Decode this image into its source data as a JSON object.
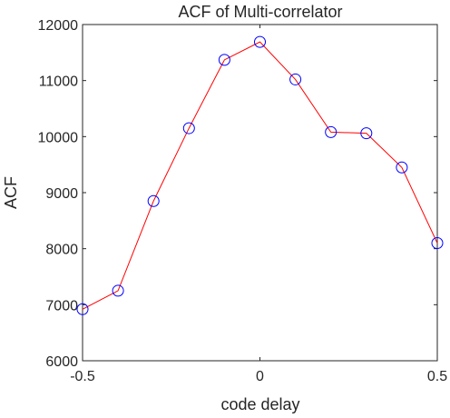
{
  "chart_data": {
    "type": "line",
    "title": "ACF of Multi-correlator",
    "xlabel": "code delay",
    "ylabel": "ACF",
    "xlim": [
      -0.5,
      0.5
    ],
    "ylim": [
      6000,
      12000
    ],
    "xticks": [
      -0.5,
      0,
      0.5
    ],
    "xtick_labels": [
      "-0.5",
      "0",
      "0.5"
    ],
    "yticks": [
      6000,
      7000,
      8000,
      9000,
      10000,
      11000,
      12000
    ],
    "ytick_labels": [
      "6000",
      "7000",
      "8000",
      "9000",
      "10000",
      "11000",
      "12000"
    ],
    "grid": false,
    "series": [
      {
        "x": [
          -0.5,
          -0.4,
          -0.3,
          -0.2,
          -0.1,
          0,
          0.1,
          0.2,
          0.3,
          0.4,
          0.5
        ],
        "y": [
          6920,
          7250,
          8850,
          10150,
          11370,
          11690,
          11020,
          10080,
          10060,
          9450,
          8100
        ],
        "line_color": "#ff0000",
        "marker": "circle",
        "marker_color": "#0000ff"
      }
    ]
  }
}
